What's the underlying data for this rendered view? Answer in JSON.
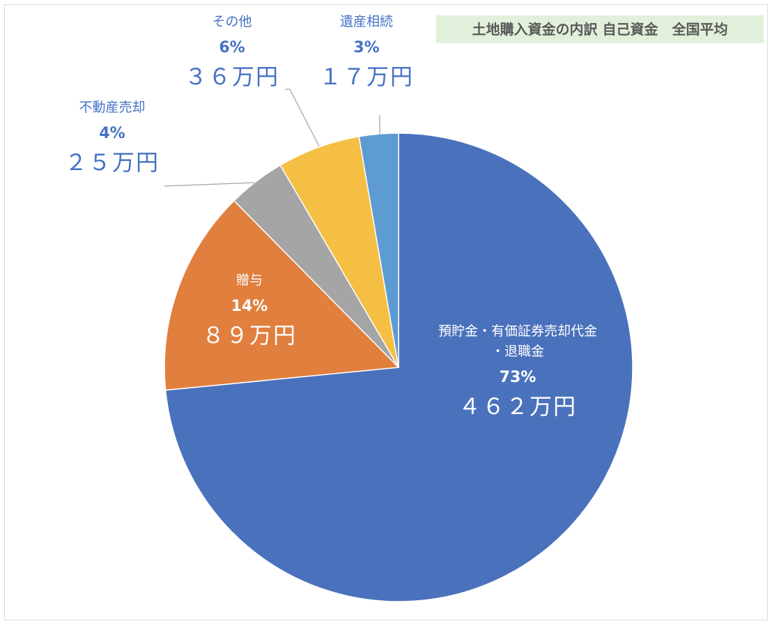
{
  "chart_data": {
    "type": "pie",
    "title": "土地購入資金の内訳 自己資金　全国平均",
    "start": "top, clockwise",
    "slices": [
      {
        "name": "預貯金・有価証券売却代金・退職金",
        "name_lines": [
          "預貯金・有価証券売却代金",
          "・退職金"
        ],
        "percent_label": "73%",
        "amount_label": "４６２万円",
        "value": 462,
        "color": "#4a72bc"
      },
      {
        "name": "贈与",
        "name_lines": [
          "贈与"
        ],
        "percent_label": "14%",
        "amount_label": "８９万円",
        "value": 89,
        "color": "#e07f3e"
      },
      {
        "name": "不動産売却",
        "name_lines": [
          "不動産売却"
        ],
        "percent_label": "4%",
        "amount_label": "２５万円",
        "value": 25,
        "color": "#a5a5a5"
      },
      {
        "name": "その他",
        "name_lines": [
          "その他"
        ],
        "percent_label": "6%",
        "amount_label": "３６万円",
        "value": 36,
        "color": "#f4bf43"
      },
      {
        "name": "遺産相続",
        "name_lines": [
          "遺産相続"
        ],
        "percent_label": "3%",
        "amount_label": "１７万円",
        "value": 17,
        "color": "#5e9bd3"
      }
    ],
    "unit": "万円",
    "legend": "none (data labels)"
  }
}
